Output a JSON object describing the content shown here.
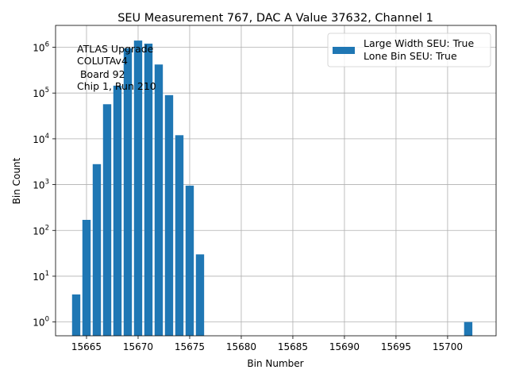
{
  "chart_data": {
    "type": "bar",
    "title": "SEU Measurement 767, DAC A Value 37632, Channel 1",
    "xlabel": "Bin Number",
    "ylabel": "Bin Count",
    "yscale": "log",
    "xlim": [
      15662.0,
      15704.7
    ],
    "ylim": [
      0.5,
      3000000
    ],
    "grid": true,
    "bar_color": "#1f77b4",
    "x_ticks": [
      15665,
      15670,
      15675,
      15680,
      15685,
      15690,
      15695,
      15700
    ],
    "y_ticks": [
      {
        "value": 1,
        "base": "10",
        "exp": "0"
      },
      {
        "value": 10,
        "base": "10",
        "exp": "1"
      },
      {
        "value": 100,
        "base": "10",
        "exp": "2"
      },
      {
        "value": 1000,
        "base": "10",
        "exp": "3"
      },
      {
        "value": 10000,
        "base": "10",
        "exp": "4"
      },
      {
        "value": 100000,
        "base": "10",
        "exp": "5"
      },
      {
        "value": 1000000,
        "base": "10",
        "exp": "6"
      }
    ],
    "bars": [
      {
        "x": 15664,
        "y": 4
      },
      {
        "x": 15665,
        "y": 170
      },
      {
        "x": 15666,
        "y": 2800
      },
      {
        "x": 15667,
        "y": 57000
      },
      {
        "x": 15668,
        "y": 145000
      },
      {
        "x": 15669,
        "y": 950000
      },
      {
        "x": 15670,
        "y": 1400000
      },
      {
        "x": 15671,
        "y": 1200000
      },
      {
        "x": 15672,
        "y": 420000
      },
      {
        "x": 15673,
        "y": 90000
      },
      {
        "x": 15674,
        "y": 12000
      },
      {
        "x": 15675,
        "y": 950
      },
      {
        "x": 15676,
        "y": 30
      },
      {
        "x": 15702,
        "y": 1
      }
    ],
    "legend": {
      "location": "top-right",
      "lines": [
        "Large Width SEU: True",
        "Lone Bin SEU: True"
      ]
    },
    "annotation": {
      "location": "top-left",
      "lines": [
        "ATLAS Upgrade",
        "COLUTAv4",
        " Board 92",
        "Chip 1, Run 210"
      ]
    }
  }
}
